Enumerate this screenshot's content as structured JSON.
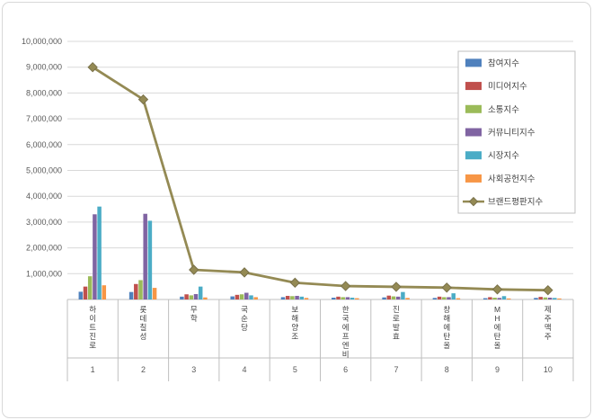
{
  "chart_data": {
    "type": "bar",
    "combo": "bar+line",
    "title": "",
    "xlabel": "",
    "ylabel": "",
    "ylim": [
      0,
      10000000
    ],
    "ytick_step": 1000000,
    "grid": true,
    "legend_position": "top-right",
    "categories": [
      "하이트진로",
      "롯데칠성",
      "무학",
      "국순당",
      "보해양조",
      "한국에프엔비",
      "진로발효",
      "창해에탄올",
      "MH에탄올",
      "제주맥주"
    ],
    "category_numbers": [
      "1",
      "2",
      "3",
      "4",
      "5",
      "6",
      "7",
      "8",
      "9",
      "10"
    ],
    "series": [
      {
        "name": "참여지수",
        "type": "bar",
        "color": "#4F81BD",
        "values": [
          300000,
          290000,
          110000,
          120000,
          90000,
          70000,
          80000,
          60000,
          50000,
          60000
        ]
      },
      {
        "name": "미디어지수",
        "type": "bar",
        "color": "#C0504D",
        "values": [
          500000,
          600000,
          200000,
          180000,
          140000,
          110000,
          150000,
          110000,
          90000,
          100000
        ]
      },
      {
        "name": "소통지수",
        "type": "bar",
        "color": "#9BBB59",
        "values": [
          900000,
          750000,
          160000,
          200000,
          130000,
          90000,
          120000,
          90000,
          70000,
          80000
        ]
      },
      {
        "name": "커뮤니티지수",
        "type": "bar",
        "color": "#8064A2",
        "values": [
          3300000,
          3320000,
          210000,
          260000,
          140000,
          90000,
          110000,
          90000,
          60000,
          70000
        ]
      },
      {
        "name": "시장지수",
        "type": "bar",
        "color": "#4BACC6",
        "values": [
          3600000,
          3050000,
          500000,
          160000,
          110000,
          70000,
          290000,
          240000,
          130000,
          60000
        ]
      },
      {
        "name": "사회공헌지수",
        "type": "bar",
        "color": "#F79646",
        "values": [
          550000,
          450000,
          80000,
          90000,
          60000,
          50000,
          60000,
          50000,
          40000,
          40000
        ]
      },
      {
        "name": "브랜드평판지수",
        "type": "line",
        "color": "#948A54",
        "values": [
          9000000,
          7750000,
          1150000,
          1050000,
          650000,
          520000,
          490000,
          460000,
          390000,
          360000
        ]
      }
    ],
    "axis_colors": {
      "gridline": "#D9D9D9",
      "axis_line": "#BFBFBF",
      "tick_label": "#595959",
      "category_label": "#404040",
      "legend_border": "#BFBFBF",
      "frame_border": "#D8D8D8"
    }
  }
}
